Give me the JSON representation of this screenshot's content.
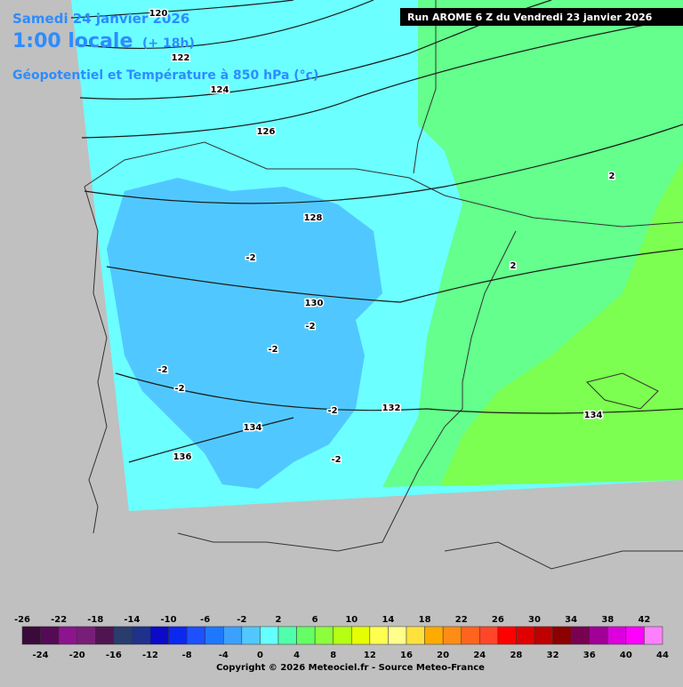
{
  "header": {
    "date": "Samedi 24 janvier 2026",
    "time": "1:00 locale",
    "lead": "(+ 18h)",
    "field": "Géopotentiel et Température à 850 hPa (°c)",
    "run": "Run AROME 6 Z du Vendredi 23 janvier 2026"
  },
  "contour_labels": [
    "120",
    "122",
    "124",
    "126",
    "128",
    "130",
    "132",
    "134",
    "134",
    "136",
    "2",
    "2",
    "-2",
    "-2",
    "-2",
    "-2",
    "-2",
    "-2",
    "-2"
  ],
  "legend": {
    "top_labels": [
      -26,
      -22,
      -18,
      -14,
      -10,
      -6,
      -2,
      2,
      6,
      10,
      14,
      18,
      22,
      26,
      30,
      34,
      38,
      42
    ],
    "bottom_labels": [
      -24,
      -20,
      -16,
      -12,
      -8,
      -4,
      0,
      4,
      8,
      12,
      16,
      20,
      24,
      28,
      32,
      36,
      40,
      44
    ],
    "colors": [
      "#3a0a3a",
      "#550a55",
      "#8c148c",
      "#781e78",
      "#501450",
      "#283c6e",
      "#1e328c",
      "#0a0ac8",
      "#0a28f0",
      "#1e50ff",
      "#1e78ff",
      "#3ca0ff",
      "#50c8ff",
      "#64ffff",
      "#50ffaa",
      "#64ff64",
      "#8cff3c",
      "#b4ff14",
      "#e6ff00",
      "#ffff50",
      "#ffff8c",
      "#ffe13c",
      "#ffaa00",
      "#ff8c14",
      "#ff641e",
      "#ff4628",
      "#ff0000",
      "#e10000",
      "#be0000",
      "#8c0000",
      "#780050",
      "#a00096",
      "#dc00dc",
      "#ff00ff",
      "#ff80ff"
    ]
  },
  "footer": {
    "copyright": "Copyright © 2026 Meteociel.fr - Source Meteo-France"
  }
}
